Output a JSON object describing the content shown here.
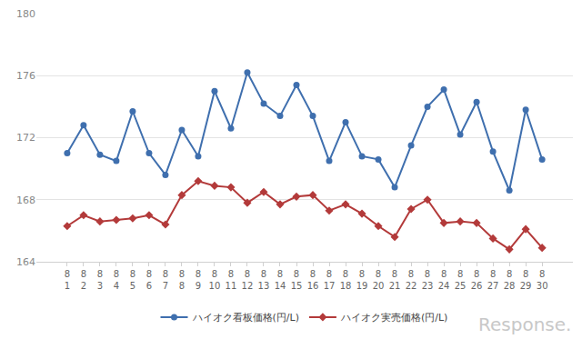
{
  "chart_data": {
    "type": "line",
    "categories": [
      "8\n1",
      "8\n2",
      "8\n3",
      "8\n4",
      "8\n5",
      "8\n6",
      "8\n7",
      "8\n8",
      "8\n9",
      "8\n10",
      "8\n11",
      "8\n12",
      "8\n13",
      "8\n14",
      "8\n15",
      "8\n16",
      "8\n17",
      "8\n18",
      "8\n19",
      "8\n20",
      "8\n21",
      "8\n22",
      "8\n23",
      "8\n24",
      "8\n25",
      "8\n26",
      "8\n27",
      "8\n28",
      "8\n29",
      "8\n30"
    ],
    "series": [
      {
        "name": "ハイオク看板価格(円/L)",
        "color": "#3f6fae",
        "marker": "circle",
        "values": [
          171.0,
          172.8,
          170.9,
          170.5,
          173.7,
          171.0,
          169.6,
          172.5,
          170.8,
          175.0,
          172.6,
          176.2,
          174.2,
          173.4,
          175.4,
          173.4,
          170.5,
          173.0,
          170.8,
          170.6,
          168.8,
          171.5,
          174.0,
          175.1,
          172.2,
          174.3,
          171.1,
          168.6,
          173.8,
          170.6
        ]
      },
      {
        "name": "ハイオク実売価格(円/L)",
        "color": "#b33a3a",
        "marker": "diamond",
        "values": [
          166.3,
          167.0,
          166.6,
          166.7,
          166.8,
          167.0,
          166.4,
          168.3,
          169.2,
          168.9,
          168.8,
          167.8,
          168.5,
          167.7,
          168.2,
          168.3,
          167.3,
          167.7,
          167.1,
          166.3,
          165.6,
          167.4,
          168.0,
          166.5,
          166.6,
          166.5,
          165.5,
          164.8,
          166.1,
          164.9
        ]
      }
    ],
    "ylim": [
      164,
      180
    ],
    "yticks": [
      164,
      168,
      172,
      176,
      180
    ],
    "grid": true,
    "legend": "bottom",
    "annotations": [
      "Response."
    ]
  }
}
